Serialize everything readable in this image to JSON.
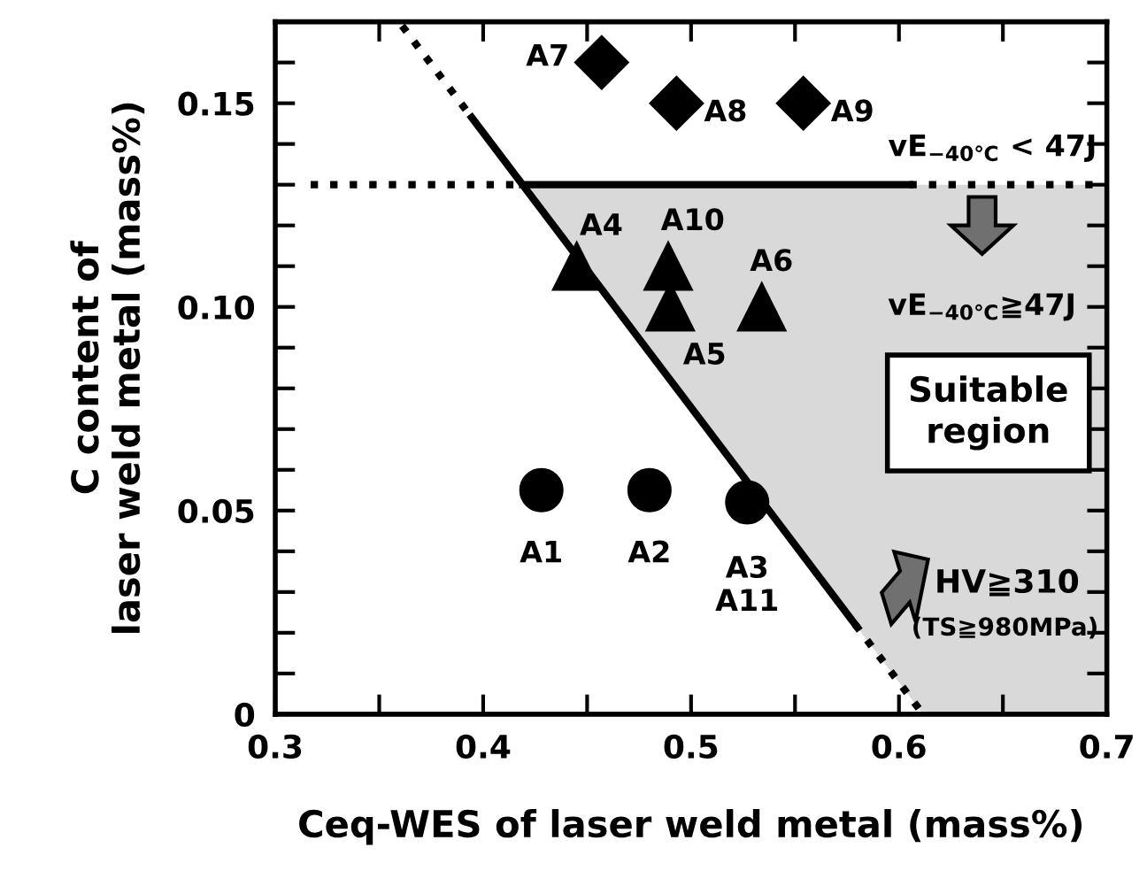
{
  "chart_data": {
    "type": "scatter",
    "xlabel": "Ceq-WES of laser weld metal (mass%)",
    "ylabel": "C content of\nlaser weld metal (mass%)",
    "xlim": [
      0.3,
      0.7
    ],
    "ylim": [
      0,
      0.17
    ],
    "xticks": [
      0.3,
      {
        "value": 0.35,
        "label": null
      },
      0.4,
      {
        "value": 0.45,
        "label": null
      },
      0.5,
      {
        "value": 0.55,
        "label": null
      },
      0.6,
      {
        "value": 0.65,
        "label": null
      },
      0.7
    ],
    "yticks": [
      0,
      {
        "value": 0.01,
        "label": null
      },
      {
        "value": 0.02,
        "label": null
      },
      {
        "value": 0.03,
        "label": null
      },
      {
        "value": 0.04,
        "label": null
      },
      0.05,
      {
        "value": 0.06,
        "label": null
      },
      {
        "value": 0.07,
        "label": null
      },
      {
        "value": 0.08,
        "label": null
      },
      {
        "value": 0.09,
        "label": null
      },
      {
        "value": 0.1,
        "label": "0.10"
      },
      {
        "value": 0.11,
        "label": null
      },
      {
        "value": 0.12,
        "label": null
      },
      {
        "value": 0.13,
        "label": null
      },
      {
        "value": 0.14,
        "label": null
      },
      0.15,
      {
        "value": 0.16,
        "label": null
      }
    ],
    "grid": false,
    "legend": false,
    "series": [
      {
        "type": "line",
        "color": "#000000",
        "line_style": "dotted",
        "x": [
          0.361,
          0.3945
        ],
        "values": [
          0.169,
          0.1465
        ]
      },
      {
        "type": "line",
        "color": "#000000",
        "line_style": "solid",
        "x": [
          0.3945,
          0.579
        ],
        "values": [
          0.1465,
          0.022
        ]
      },
      {
        "type": "line",
        "color": "#000000",
        "line_style": "dotted",
        "x": [
          0.579,
          0.6116
        ],
        "values": [
          0.022,
          0
        ]
      },
      {
        "type": "line",
        "color": "#000000",
        "line_style": "dotted",
        "x": [
          0.317,
          0.419
        ],
        "values": [
          0.13,
          0.13
        ]
      },
      {
        "type": "line",
        "color": "#000000",
        "line_style": "solid",
        "x": [
          0.419,
          0.605
        ],
        "values": [
          0.13,
          0.13
        ]
      },
      {
        "type": "line",
        "color": "#000000",
        "line_style": "dotted",
        "x": [
          0.605,
          0.7
        ],
        "values": [
          0.13,
          0.13
        ]
      },
      {
        "color": "#000000",
        "marker": "diamond",
        "x": [
          0.457,
          0.493,
          0.554
        ],
        "values": [
          0.16,
          0.15,
          0.15
        ]
      },
      {
        "color": "#000000",
        "marker": "triangle",
        "x": [
          0.445,
          0.489,
          0.49,
          0.534
        ],
        "values": [
          0.11,
          0.11,
          0.1,
          0.1
        ]
      },
      {
        "color": "#000000",
        "marker": "circle",
        "x": [
          0.428,
          0.48,
          0.527
        ],
        "values": [
          0.055,
          0.055,
          0.052
        ]
      }
    ],
    "annotations": [
      {
        "text": "A7",
        "x": 0.457,
        "y": 0.16
      },
      {
        "text": "A8",
        "x": 0.493,
        "y": 0.15
      },
      {
        "text": "A9",
        "x": 0.554,
        "y": 0.15
      },
      {
        "text": "A4",
        "x": 0.445,
        "y": 0.11
      },
      {
        "text": "A10",
        "x": 0.489,
        "y": 0.11
      },
      {
        "text": "A5",
        "x": 0.49,
        "y": 0.1
      },
      {
        "text": "A6",
        "x": 0.534,
        "y": 0.1
      },
      {
        "text": "A1",
        "x": 0.428,
        "y": 0.055
      },
      {
        "text": "A2",
        "x": 0.48,
        "y": 0.055
      },
      {
        "text": "A3\nA11",
        "x": 0.527,
        "y": 0.052
      },
      "vE$_{−40℃}$ < 47J",
      "vE$_{−40℃}$≧47J",
      "Suitable\nregion",
      "HV≧310",
      "(TS≧980MPa)"
    ]
  }
}
